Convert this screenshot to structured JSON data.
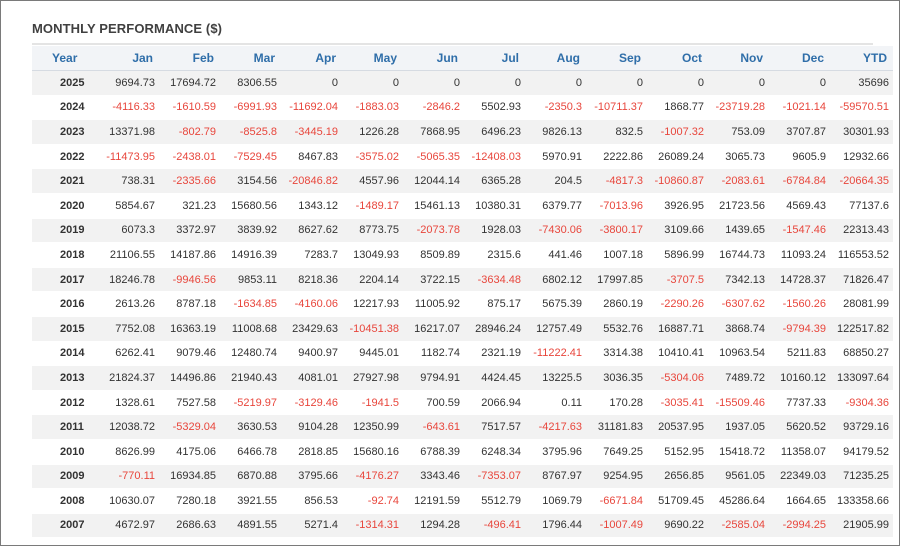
{
  "title": "MONTHLY PERFORMANCE ($)",
  "colors": {
    "negative": "#e8463c",
    "header": "#2f6ea9"
  },
  "columns": [
    "Year",
    "Jan",
    "Feb",
    "Mar",
    "Apr",
    "May",
    "Jun",
    "Jul",
    "Aug",
    "Sep",
    "Oct",
    "Nov",
    "Dec",
    "YTD"
  ],
  "rows": [
    [
      "2025",
      "9694.73",
      "17694.72",
      "8306.55",
      "0",
      "0",
      "0",
      "0",
      "0",
      "0",
      "0",
      "0",
      "0",
      "35696"
    ],
    [
      "2024",
      "-4116.33",
      "-1610.59",
      "-6991.93",
      "-11692.04",
      "-1883.03",
      "-2846.2",
      "5502.93",
      "-2350.3",
      "-10711.37",
      "1868.77",
      "-23719.28",
      "-1021.14",
      "-59570.51"
    ],
    [
      "2023",
      "13371.98",
      "-802.79",
      "-8525.8",
      "-3445.19",
      "1226.28",
      "7868.95",
      "6496.23",
      "9826.13",
      "832.5",
      "-1007.32",
      "753.09",
      "3707.87",
      "30301.93"
    ],
    [
      "2022",
      "-11473.95",
      "-2438.01",
      "-7529.45",
      "8467.83",
      "-3575.02",
      "-5065.35",
      "-12408.03",
      "5970.91",
      "2222.86",
      "26089.24",
      "3065.73",
      "9605.9",
      "12932.66"
    ],
    [
      "2021",
      "738.31",
      "-2335.66",
      "3154.56",
      "-20846.82",
      "4557.96",
      "12044.14",
      "6365.28",
      "204.5",
      "-4817.3",
      "-10860.87",
      "-2083.61",
      "-6784.84",
      "-20664.35"
    ],
    [
      "2020",
      "5854.67",
      "321.23",
      "15680.56",
      "1343.12",
      "-1489.17",
      "15461.13",
      "10380.31",
      "6379.77",
      "-7013.96",
      "3926.95",
      "21723.56",
      "4569.43",
      "77137.6"
    ],
    [
      "2019",
      "6073.3",
      "3372.97",
      "3839.92",
      "8627.62",
      "8773.75",
      "-2073.78",
      "1928.03",
      "-7430.06",
      "-3800.17",
      "3109.66",
      "1439.65",
      "-1547.46",
      "22313.43"
    ],
    [
      "2018",
      "21106.55",
      "14187.86",
      "14916.39",
      "7283.7",
      "13049.93",
      "8509.89",
      "2315.6",
      "441.46",
      "1007.18",
      "5896.99",
      "16744.73",
      "11093.24",
      "116553.52"
    ],
    [
      "2017",
      "18246.78",
      "-9946.56",
      "9853.11",
      "8218.36",
      "2204.14",
      "3722.15",
      "-3634.48",
      "6802.12",
      "17997.85",
      "-3707.5",
      "7342.13",
      "14728.37",
      "71826.47"
    ],
    [
      "2016",
      "2613.26",
      "8787.18",
      "-1634.85",
      "-4160.06",
      "12217.93",
      "11005.92",
      "875.17",
      "5675.39",
      "2860.19",
      "-2290.26",
      "-6307.62",
      "-1560.26",
      "28081.99"
    ],
    [
      "2015",
      "7752.08",
      "16363.19",
      "11008.68",
      "23429.63",
      "-10451.38",
      "16217.07",
      "28946.24",
      "12757.49",
      "5532.76",
      "16887.71",
      "3868.74",
      "-9794.39",
      "122517.82"
    ],
    [
      "2014",
      "6262.41",
      "9079.46",
      "12480.74",
      "9400.97",
      "9445.01",
      "1182.74",
      "2321.19",
      "-11222.41",
      "3314.38",
      "10410.41",
      "10963.54",
      "5211.83",
      "68850.27"
    ],
    [
      "2013",
      "21824.37",
      "14496.86",
      "21940.43",
      "4081.01",
      "27927.98",
      "9794.91",
      "4424.45",
      "13225.5",
      "3036.35",
      "-5304.06",
      "7489.72",
      "10160.12",
      "133097.64"
    ],
    [
      "2012",
      "1328.61",
      "7527.58",
      "-5219.97",
      "-3129.46",
      "-1941.5",
      "700.59",
      "2066.94",
      "0.11",
      "170.28",
      "-3035.41",
      "-15509.46",
      "7737.33",
      "-9304.36"
    ],
    [
      "2011",
      "12038.72",
      "-5329.04",
      "3630.53",
      "9104.28",
      "12350.99",
      "-643.61",
      "7517.57",
      "-4217.63",
      "31181.83",
      "20537.95",
      "1937.05",
      "5620.52",
      "93729.16"
    ],
    [
      "2010",
      "8626.99",
      "4175.06",
      "6466.78",
      "2818.85",
      "15680.16",
      "6788.39",
      "6248.34",
      "3795.96",
      "7649.25",
      "5152.95",
      "15418.72",
      "11358.07",
      "94179.52"
    ],
    [
      "2009",
      "-770.11",
      "16934.85",
      "6870.88",
      "3795.66",
      "-4176.27",
      "3343.46",
      "-7353.07",
      "8767.97",
      "9254.95",
      "2656.85",
      "9561.05",
      "22349.03",
      "71235.25"
    ],
    [
      "2008",
      "10630.07",
      "7280.18",
      "3921.55",
      "856.53",
      "-92.74",
      "12191.59",
      "5512.79",
      "1069.79",
      "-6671.84",
      "51709.45",
      "45286.64",
      "1664.65",
      "133358.66"
    ],
    [
      "2007",
      "4672.97",
      "2686.63",
      "4891.55",
      "5271.4",
      "-1314.31",
      "1294.28",
      "-496.41",
      "1796.44",
      "-1007.49",
      "9690.22",
      "-2585.04",
      "-2994.25",
      "21905.99"
    ]
  ]
}
